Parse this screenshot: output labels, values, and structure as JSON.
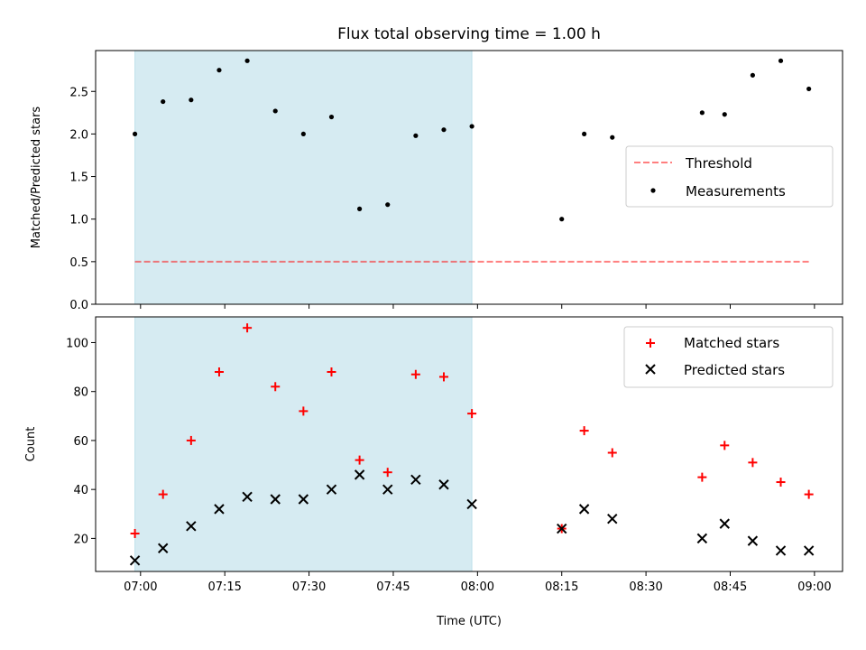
{
  "title": "Flux total observing time = 1.00 h",
  "xlabel": "Time (UTC)",
  "x_ticks": [
    "07:00",
    "07:15",
    "07:30",
    "07:45",
    "08:00",
    "08:15",
    "08:30",
    "08:45",
    "09:00"
  ],
  "x_range": [
    "06:52",
    "09:05"
  ],
  "shaded_interval": [
    "06:59",
    "07:59"
  ],
  "colors": {
    "shade": "#add8e6",
    "threshold": "#ff0000",
    "matched": "#ff0000",
    "predicted": "#000000",
    "measurements": "#000000"
  },
  "chart_data": [
    {
      "type": "scatter",
      "ylabel": "Matched/Predicted stars",
      "ylim": [
        0,
        2.98
      ],
      "y_ticks": [
        "0.0",
        "0.5",
        "1.0",
        "1.5",
        "2.0",
        "2.5"
      ],
      "legend_position": "center-right",
      "legend": [
        "Threshold",
        "Measurements"
      ],
      "threshold": {
        "name": "Threshold",
        "value": 0.5,
        "x": [
          "06:59",
          "08:59"
        ]
      },
      "series": [
        {
          "name": "Measurements",
          "x": [
            "06:59",
            "07:04",
            "07:09",
            "07:14",
            "07:19",
            "07:24",
            "07:29",
            "07:34",
            "07:39",
            "07:44",
            "07:49",
            "07:54",
            "07:59",
            "08:15",
            "08:19",
            "08:24",
            "08:40",
            "08:44",
            "08:49",
            "08:54",
            "08:59"
          ],
          "y": [
            2.0,
            2.38,
            2.4,
            2.75,
            2.86,
            2.27,
            2.0,
            2.2,
            1.12,
            1.17,
            1.98,
            2.05,
            2.09,
            1.0,
            2.0,
            1.96,
            2.25,
            2.23,
            2.69,
            2.86,
            2.53
          ]
        }
      ]
    },
    {
      "type": "scatter",
      "ylabel": "Count",
      "ylim": [
        6.5,
        110.5
      ],
      "y_ticks": [
        "20",
        "40",
        "60",
        "80",
        "100"
      ],
      "legend_position": "top-right",
      "legend": [
        "Matched stars",
        "Predicted stars"
      ],
      "x": [
        "06:59",
        "07:04",
        "07:09",
        "07:14",
        "07:19",
        "07:24",
        "07:29",
        "07:34",
        "07:39",
        "07:44",
        "07:49",
        "07:54",
        "07:59",
        "08:15",
        "08:19",
        "08:24",
        "08:40",
        "08:44",
        "08:49",
        "08:54",
        "08:59"
      ],
      "series": [
        {
          "name": "Matched stars",
          "values": [
            22,
            38,
            60,
            88,
            106,
            82,
            72,
            88,
            52,
            47,
            87,
            86,
            71,
            24,
            64,
            55,
            45,
            58,
            51,
            43,
            38
          ]
        },
        {
          "name": "Predicted stars",
          "values": [
            11,
            16,
            25,
            32,
            37,
            36,
            36,
            40,
            46,
            40,
            44,
            42,
            34,
            24,
            32,
            28,
            20,
            26,
            19,
            15,
            15
          ]
        }
      ]
    }
  ]
}
